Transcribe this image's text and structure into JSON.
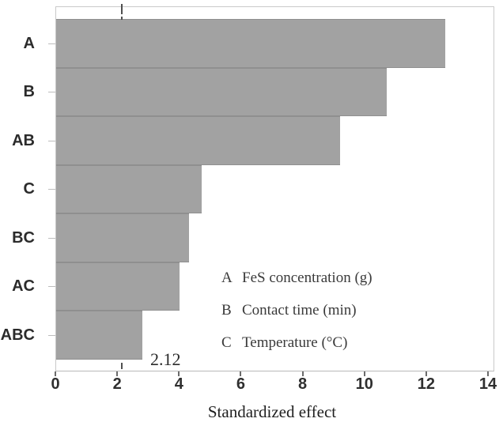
{
  "chart_data": {
    "type": "bar",
    "orientation": "horizontal",
    "title": "",
    "categories": [
      "A",
      "B",
      "AB",
      "C",
      "BC",
      "AC",
      "ABC"
    ],
    "values": [
      12.6,
      10.7,
      9.2,
      4.7,
      4.3,
      4.0,
      2.8
    ],
    "xlabel": "Standardized effect",
    "ylabel": "",
    "xlim": [
      0,
      14
    ],
    "xticks": [
      0,
      2,
      4,
      6,
      8,
      10,
      12,
      14
    ],
    "grid": false,
    "bar_color": "#a2a2a2",
    "reference_line": {
      "value": 2.12,
      "label": "2.12",
      "style": "dashed",
      "color": "#4f4f4f"
    },
    "legend": {
      "position": "inside-right",
      "entries": [
        {
          "key": "A",
          "label": "FeS concentration (g)"
        },
        {
          "key": "B",
          "label": "Contact time (min)"
        },
        {
          "key": "C",
          "label": "Temperature (°C)"
        }
      ]
    }
  }
}
